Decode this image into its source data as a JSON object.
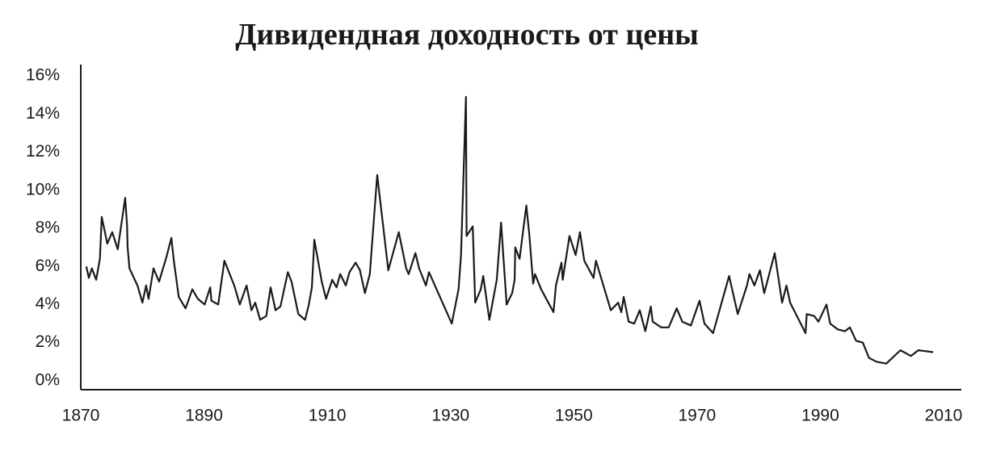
{
  "chart_data": {
    "type": "line",
    "title": "Дивидендная доходность от цены",
    "x": [
      1870.9,
      1871.3,
      1871.8,
      1872.5,
      1873.1,
      1873.4,
      1874.3,
      1875.1,
      1876.0,
      1877.2,
      1877.5,
      1877.6,
      1877.9,
      1879.2,
      1880.0,
      1880.6,
      1881.0,
      1881.8,
      1882.7,
      1883.9,
      1884.7,
      1885.1,
      1885.9,
      1887.0,
      1888.1,
      1889.0,
      1890.1,
      1891.0,
      1891.2,
      1892.3,
      1893.3,
      1894.9,
      1895.8,
      1896.9,
      1897.7,
      1898.3,
      1899.1,
      1900.1,
      1900.8,
      1901.6,
      1902.4,
      1903.6,
      1904.2,
      1905.3,
      1906.4,
      1907.0,
      1907.5,
      1907.9,
      1909.1,
      1909.8,
      1910.8,
      1911.5,
      1912.1,
      1913.0,
      1913.6,
      1914.6,
      1915.3,
      1916.1,
      1916.9,
      1918.1,
      1919.9,
      1921.6,
      1922.8,
      1923.2,
      1924.3,
      1924.9,
      1926.0,
      1926.5,
      1930.2,
      1931.3,
      1931.7,
      1932.5,
      1932.6,
      1933.6,
      1934.0,
      1934.9,
      1935.3,
      1936.3,
      1937.5,
      1938.2,
      1939.1,
      1940.0,
      1940.4,
      1940.5,
      1941.2,
      1942.3,
      1942.8,
      1943.4,
      1943.7,
      1944.7,
      1946.7,
      1947.1,
      1948.0,
      1948.2,
      1949.3,
      1950.3,
      1951.0,
      1951.7,
      1953.2,
      1953.6,
      1956.0,
      1957.2,
      1957.7,
      1958.1,
      1958.9,
      1959.8,
      1960.7,
      1961.6,
      1962.5,
      1962.8,
      1964.2,
      1965.4,
      1966.7,
      1967.6,
      1969.0,
      1970.4,
      1971.2,
      1972.6,
      1975.2,
      1976.6,
      1978.1,
      1978.5,
      1979.3,
      1980.2,
      1980.9,
      1982.6,
      1983.8,
      1984.5,
      1985.1,
      1987.6,
      1987.8,
      1989.0,
      1989.7,
      1991.0,
      1991.6,
      1992.8,
      1994.0,
      1994.8,
      1995.8,
      1996.9,
      1997.9,
      1999.1,
      2000.7,
      2003.0,
      2004.7,
      2005.9,
      2008.3
    ],
    "values": [
      6.0,
      5.4,
      5.9,
      5.3,
      6.4,
      8.6,
      7.2,
      7.8,
      6.9,
      9.6,
      8.2,
      7.0,
      5.9,
      5.0,
      4.1,
      5.0,
      4.3,
      5.9,
      5.2,
      6.5,
      7.5,
      6.3,
      4.4,
      3.8,
      4.8,
      4.3,
      4.0,
      4.9,
      4.2,
      4.0,
      6.3,
      5.0,
      4.0,
      5.0,
      3.7,
      4.1,
      3.2,
      3.4,
      4.9,
      3.7,
      3.9,
      5.7,
      5.2,
      3.5,
      3.2,
      4.0,
      4.9,
      7.4,
      5.2,
      4.3,
      5.3,
      4.9,
      5.6,
      5.0,
      5.7,
      6.2,
      5.8,
      4.6,
      5.6,
      10.8,
      5.8,
      7.8,
      5.9,
      5.6,
      6.7,
      5.9,
      5.0,
      5.7,
      3.0,
      4.8,
      6.6,
      14.9,
      7.6,
      8.1,
      4.1,
      4.8,
      5.5,
      3.2,
      5.3,
      8.3,
      4.0,
      4.6,
      5.3,
      7.0,
      6.4,
      9.2,
      7.6,
      5.1,
      5.6,
      4.8,
      3.6,
      5.0,
      6.2,
      5.3,
      7.6,
      6.6,
      7.8,
      6.3,
      5.4,
      6.3,
      3.7,
      4.1,
      3.6,
      4.4,
      3.1,
      3.0,
      3.7,
      2.6,
      3.9,
      3.1,
      2.8,
      2.8,
      3.8,
      3.1,
      2.9,
      4.2,
      3.0,
      2.5,
      5.5,
      3.5,
      5.0,
      5.6,
      5.0,
      5.8,
      4.6,
      6.7,
      4.1,
      5.0,
      4.1,
      2.5,
      3.5,
      3.4,
      3.1,
      4.0,
      3.0,
      2.7,
      2.6,
      2.8,
      2.1,
      2.0,
      1.2,
      1.0,
      0.9,
      1.6,
      1.3,
      1.6,
      1.5
    ],
    "color": "#1a1a1a",
    "xlim": [
      1870,
      2010
    ],
    "xticks": [
      1870,
      1890,
      1910,
      1930,
      1950,
      1970,
      1990,
      2010
    ],
    "ylim": [
      -0.47,
      16.6
    ],
    "yticks": [
      {
        "value": 0,
        "label": "0%"
      },
      {
        "value": 2,
        "label": "2%"
      },
      {
        "value": 4,
        "label": "4%"
      },
      {
        "value": 6,
        "label": "6%"
      },
      {
        "value": 8,
        "label": "8%"
      },
      {
        "value": 10,
        "label": "10%"
      },
      {
        "value": 12,
        "label": "12%"
      },
      {
        "value": 14,
        "label": "14%"
      },
      {
        "value": 16,
        "label": "16%"
      }
    ],
    "grid": false
  }
}
